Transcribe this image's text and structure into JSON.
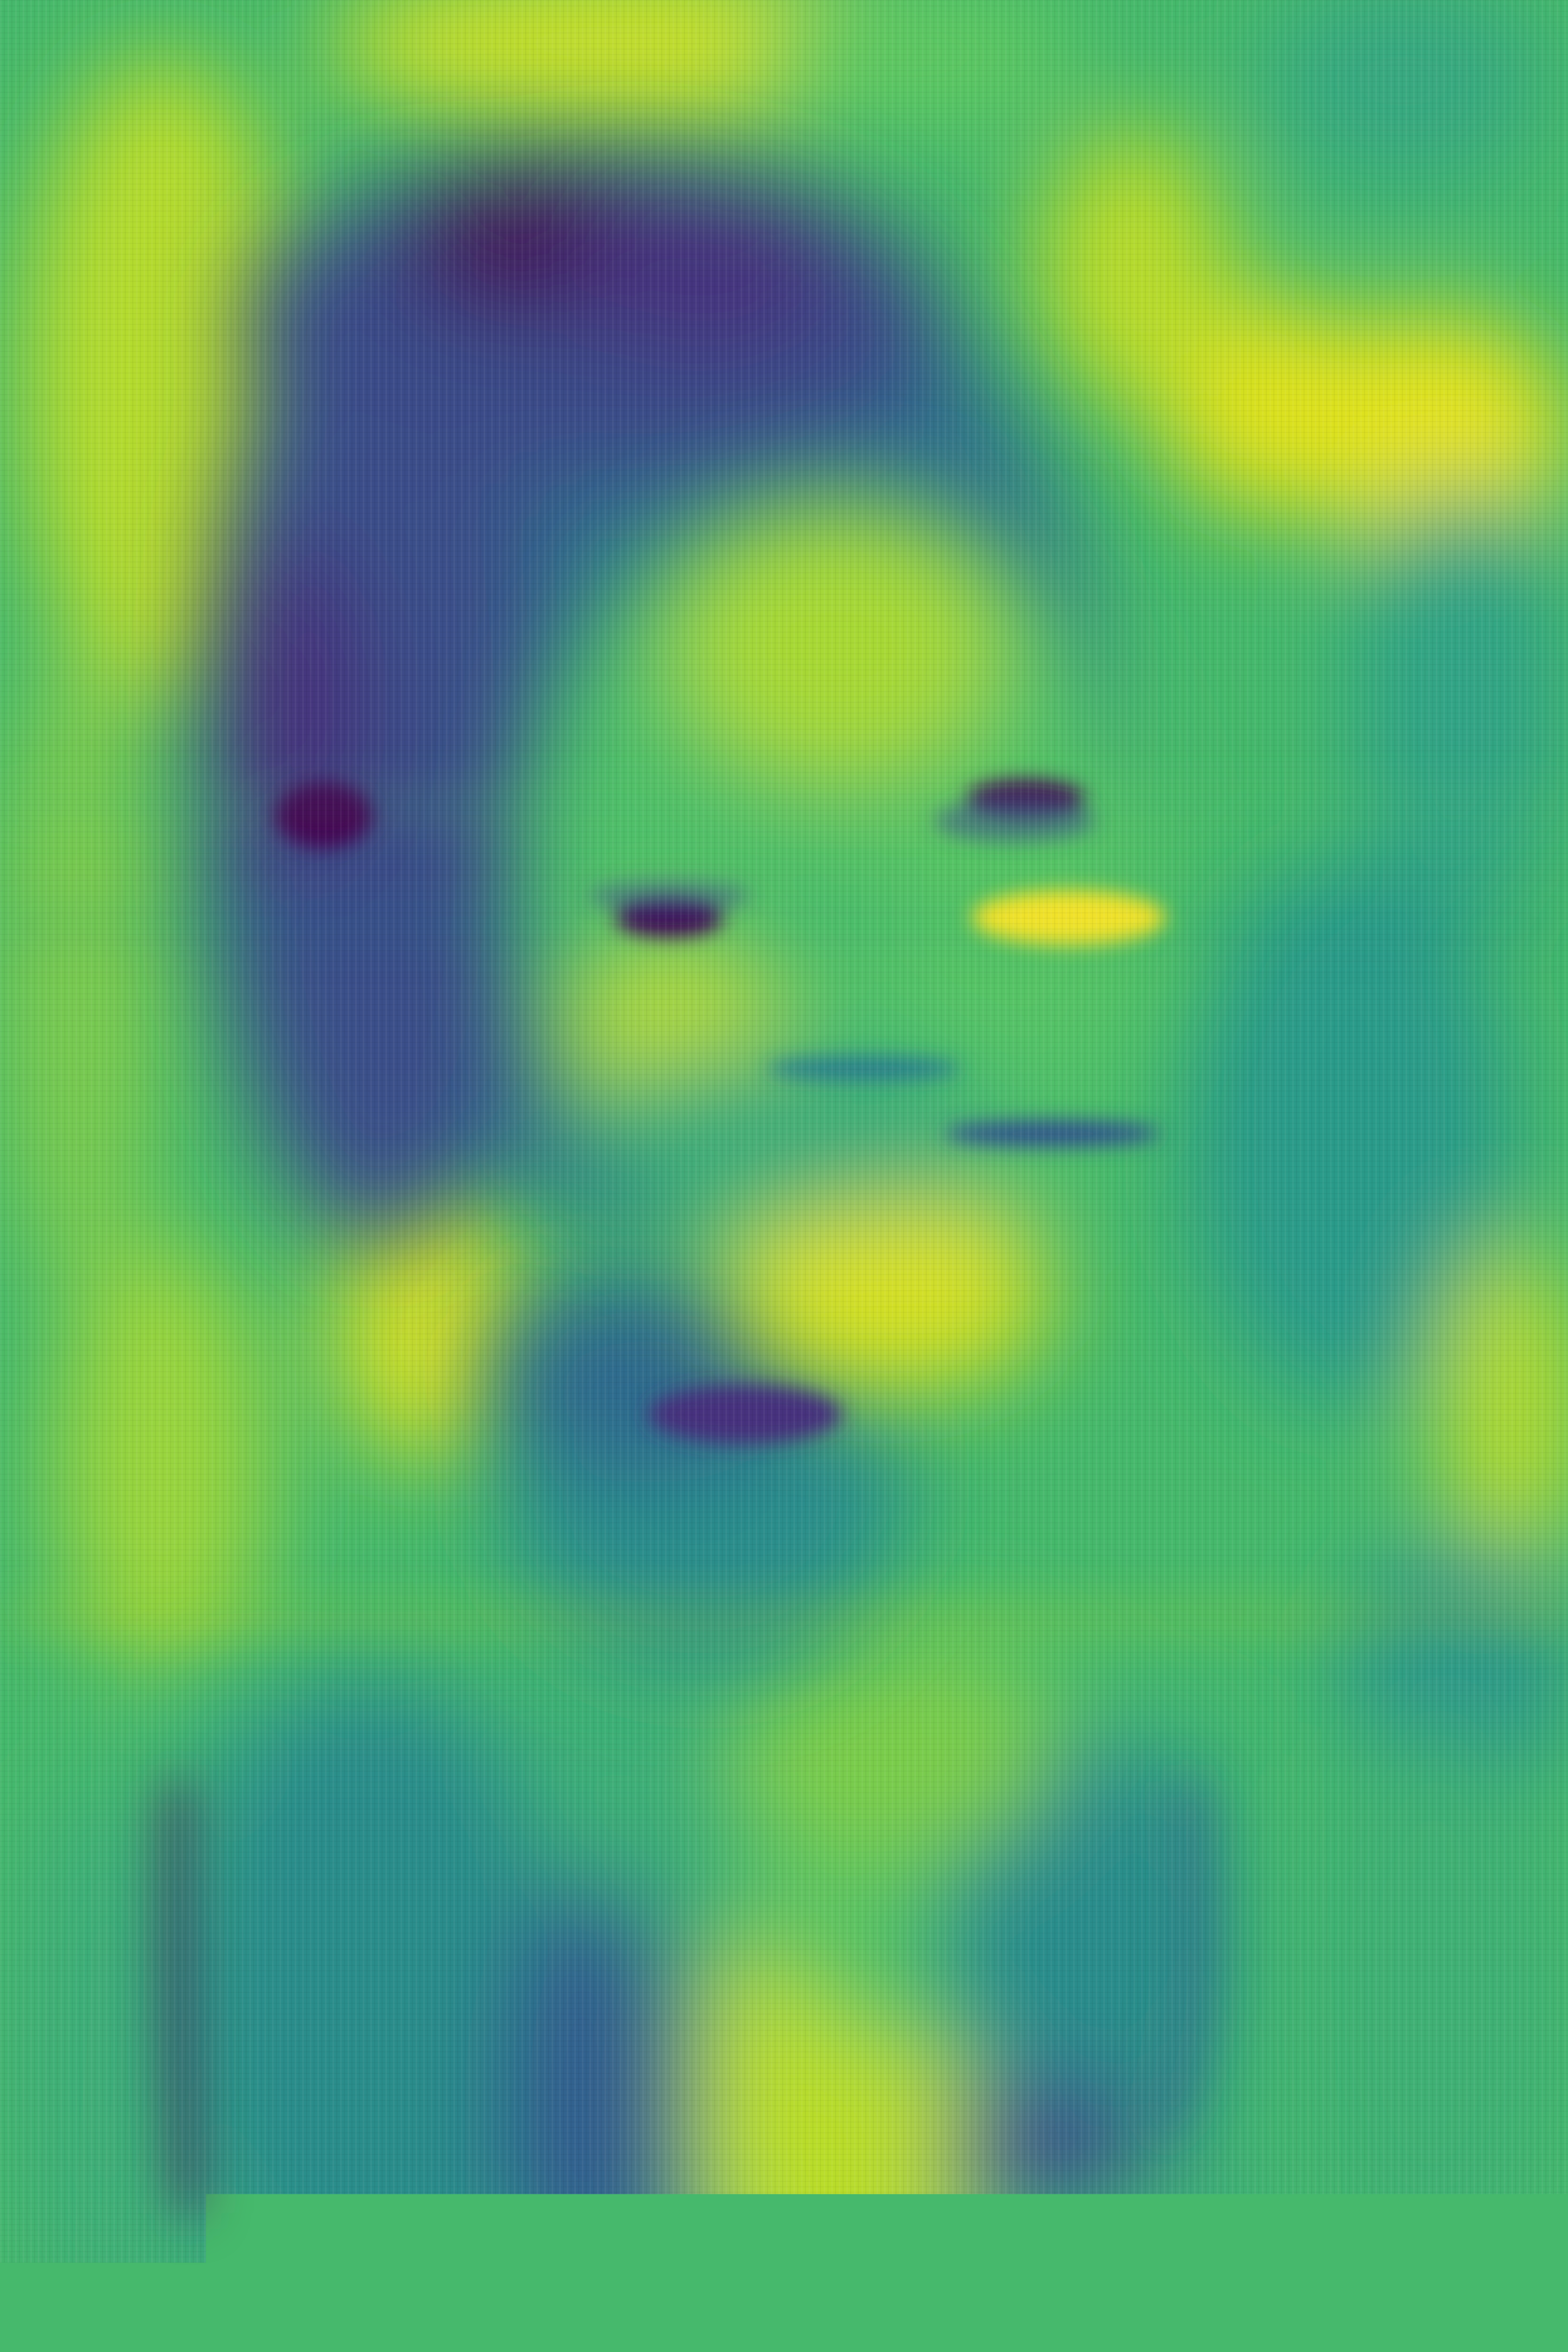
{
  "image": {
    "description_kind": "viridis-colormapped reconstruction of a portrait",
    "colormap": "viridis",
    "palette": {
      "dark_purple": "#440154",
      "indigo": "#3b528b",
      "teal_blue": "#31688e",
      "teal": "#21918c",
      "green_teal": "#2ea37c",
      "green": "#5ec962",
      "yellow_green": "#addc30",
      "yellow": "#e4e419",
      "bright_yellow": "#fde725"
    }
  }
}
